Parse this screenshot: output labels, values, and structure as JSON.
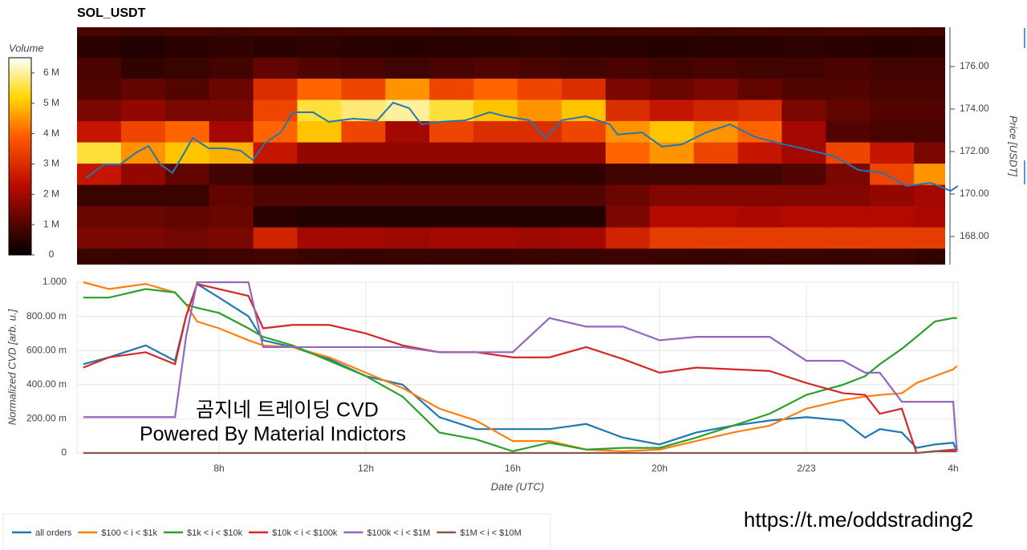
{
  "footer": "https://t.me/oddstrading2",
  "chart_data": [
    {
      "type": "heatmap",
      "title": "SOL_USDT",
      "colorbar_title": "Volume",
      "y_label": "Price [USDT]",
      "xlim": [
        4.13,
        28.13
      ],
      "ylim": [
        166.68,
        177.85
      ],
      "yticks": [
        {
          "value": 168,
          "label": "168.00"
        },
        {
          "value": 170,
          "label": "170.00"
        },
        {
          "value": 172,
          "label": "172.00"
        },
        {
          "value": 174,
          "label": "174.00"
        },
        {
          "value": 176,
          "label": "176.00"
        }
      ],
      "clim": [
        0,
        6500000
      ],
      "colorbar_ticks": [
        0,
        {
          "value": 1000000,
          "label": "1 M"
        },
        {
          "value": 2000000,
          "label": "2 M"
        },
        {
          "value": 3000000,
          "label": "3 M"
        },
        {
          "value": 4000000,
          "label": "4 M"
        },
        {
          "value": 5000000,
          "label": "5 M"
        },
        {
          "value": 6000000,
          "label": "6 M"
        }
      ],
      "heatmap": {
        "x_bins": [
          4.13,
          5.33,
          6.53,
          7.73,
          8.93,
          10.13,
          11.33,
          12.53,
          13.73,
          14.93,
          16.13,
          17.33,
          18.53,
          19.73,
          20.93,
          22.13,
          23.33,
          24.53,
          25.73,
          26.93,
          27.78
        ],
        "y_bins": [
          166.45,
          167.45,
          168.45,
          169.45,
          170.45,
          171.45,
          172.45,
          173.45,
          174.45,
          175.45,
          176.45,
          177.45,
          178.45
        ],
        "values": [
          [
            700000,
            650000,
            700000,
            750000,
            800000,
            700000,
            650000,
            700000,
            700000,
            650000,
            700000,
            700000,
            750000,
            700000,
            650000,
            700000,
            700000,
            650000,
            700000,
            600000
          ],
          [
            1500000,
            1500000,
            1400000,
            1500000,
            2800000,
            2000000,
            2000000,
            1900000,
            2000000,
            2000000,
            1900000,
            2000000,
            2800000,
            3300000,
            3300000,
            3300000,
            3300000,
            3300000,
            3300000,
            3300000
          ],
          [
            1300000,
            1300000,
            1200000,
            1300000,
            500000,
            400000,
            400000,
            400000,
            400000,
            400000,
            400000,
            400000,
            1500000,
            2200000,
            2200000,
            2100000,
            2200000,
            2200000,
            2200000,
            2100000
          ],
          [
            700000,
            700000,
            700000,
            1200000,
            1000000,
            1000000,
            1000000,
            1000000,
            1000000,
            1000000,
            1000000,
            1000000,
            1300000,
            1600000,
            1600000,
            1600000,
            1600000,
            1600000,
            1800000,
            2000000
          ],
          [
            2500000,
            1800000,
            1200000,
            800000,
            600000,
            600000,
            600000,
            600000,
            600000,
            600000,
            600000,
            600000,
            800000,
            800000,
            800000,
            800000,
            1000000,
            1500000,
            3500000,
            4500000
          ],
          [
            5500000,
            4500000,
            5000000,
            4800000,
            2500000,
            1800000,
            1800000,
            1800000,
            1800000,
            1800000,
            1800000,
            1800000,
            4000000,
            4500000,
            3500000,
            2500000,
            2000000,
            3500000,
            2500000,
            1500000
          ],
          [
            2500000,
            3500000,
            4000000,
            2000000,
            4000000,
            5000000,
            3500000,
            2000000,
            3500000,
            3000000,
            3000000,
            3500000,
            4500000,
            5000000,
            4500000,
            4000000,
            2000000,
            1000000,
            900000,
            900000
          ],
          [
            1500000,
            1800000,
            1500000,
            1500000,
            3500000,
            5500000,
            5800000,
            6000000,
            5500000,
            5000000,
            4500000,
            5000000,
            3000000,
            2500000,
            2800000,
            3000000,
            1500000,
            1200000,
            1000000,
            1000000
          ],
          [
            1000000,
            1200000,
            1000000,
            1300000,
            3000000,
            4000000,
            3500000,
            4500000,
            3500000,
            4000000,
            3500000,
            3000000,
            1500000,
            1300000,
            1500000,
            1200000,
            1000000,
            1000000,
            900000,
            900000
          ],
          [
            900000,
            600000,
            700000,
            800000,
            1200000,
            1000000,
            900000,
            800000,
            900000,
            1000000,
            900000,
            800000,
            900000,
            800000,
            900000,
            800000,
            800000,
            900000,
            800000,
            800000
          ],
          [
            500000,
            400000,
            500000,
            600000,
            500000,
            550000,
            500000,
            450000,
            500000,
            500000,
            550000,
            500000,
            500000,
            450000,
            500000,
            500000,
            550000,
            500000,
            450000,
            500000
          ],
          [
            900000,
            800000,
            900000,
            850000,
            900000,
            800000,
            850000,
            900000,
            800000,
            850000,
            900000,
            800000,
            850000,
            900000,
            800000,
            850000,
            800000,
            900000,
            850000,
            800000
          ]
        ]
      },
      "series": [
        {
          "color": "#1f77b4",
          "x": [
            4.37,
            4.87,
            5.31,
            5.75,
            6.08,
            6.4,
            6.73,
            7.06,
            7.28,
            7.72,
            8.15,
            8.59,
            8.92,
            9.25,
            9.68,
            10.01,
            10.56,
            10.99,
            11.65,
            12.31,
            12.74,
            13.18,
            13.51,
            14.05,
            14.71,
            15.37,
            15.8,
            16.46,
            16.9,
            17.33,
            17.99,
            18.64,
            18.86,
            19.52,
            20.07,
            20.61,
            21.27,
            21.92,
            22.58,
            23.23,
            23.89,
            24.77,
            25.42,
            26.08,
            26.73,
            27.39,
            27.93,
            28.13
          ],
          "values": [
            170.75,
            171.4,
            171.4,
            171.96,
            172.26,
            171.4,
            171.0,
            171.96,
            172.64,
            172.15,
            172.15,
            172.04,
            171.6,
            172.4,
            172.9,
            173.85,
            173.85,
            173.4,
            173.55,
            173.47,
            174.3,
            174.04,
            173.28,
            173.4,
            173.47,
            173.85,
            173.66,
            173.47,
            172.64,
            173.47,
            173.66,
            173.28,
            172.8,
            172.9,
            172.23,
            172.34,
            172.9,
            173.28,
            172.7,
            172.4,
            172.15,
            171.77,
            171.13,
            171.0,
            170.38,
            170.53,
            170.15,
            170.38
          ]
        }
      ]
    },
    {
      "type": "line",
      "x_label": "Date (UTC)",
      "y_label": "Normalized CVD [arb. u.]",
      "xlim": [
        4.13,
        28.13
      ],
      "ylim": [
        0,
        1
      ],
      "xticks": [
        {
          "value": 8,
          "label": "8h"
        },
        {
          "value": 12,
          "label": "12h"
        },
        {
          "value": 16,
          "label": "16h"
        },
        {
          "value": 20,
          "label": "20h"
        },
        {
          "value": 24,
          "label": "2/23"
        },
        {
          "value": 28,
          "label": "4h"
        }
      ],
      "yticks": [
        0,
        {
          "value": 0.2,
          "label": "200.00 m"
        },
        {
          "value": 0.4,
          "label": "400.00 m"
        },
        {
          "value": 0.6,
          "label": "600.00 m"
        },
        {
          "value": 0.8,
          "label": "800.00 m"
        },
        {
          "value": 1,
          "label": "1.000"
        }
      ],
      "grid": true,
      "annotations": [
        "곰지네 트레이딩 CVD",
        "Powered By Material Indictors"
      ],
      "x": [
        4.3,
        5,
        6,
        6.8,
        7.1,
        7.4,
        8,
        8.8,
        9.2,
        10,
        11,
        12,
        13,
        14,
        15,
        16,
        17,
        18,
        19,
        20,
        21,
        22,
        23,
        24,
        25,
        25.6,
        26,
        26.6,
        27,
        27.5,
        28,
        28.1
      ],
      "series": [
        {
          "name": "all orders",
          "color": "#1f77b4",
          "values": [
            0.52,
            0.56,
            0.63,
            0.54,
            0.8,
            0.99,
            0.91,
            0.8,
            0.66,
            0.62,
            0.55,
            0.45,
            0.4,
            0.21,
            0.14,
            0.14,
            0.14,
            0.17,
            0.09,
            0.05,
            0.12,
            0.16,
            0.19,
            0.21,
            0.19,
            0.09,
            0.14,
            0.12,
            0.03,
            0.05,
            0.06,
            0.01
          ]
        },
        {
          "name": "$100 < i < $1k",
          "color": "#ff7f0e",
          "values": [
            1.0,
            0.96,
            0.99,
            0.94,
            0.87,
            0.77,
            0.73,
            0.66,
            0.63,
            0.62,
            0.56,
            0.47,
            0.38,
            0.26,
            0.19,
            0.07,
            0.07,
            0.02,
            0.01,
            0.02,
            0.07,
            0.12,
            0.16,
            0.26,
            0.31,
            0.33,
            0.34,
            0.35,
            0.41,
            0.45,
            0.49,
            0.51
          ]
        },
        {
          "name": "$1k < i < $10k",
          "color": "#2ca02c",
          "values": [
            0.91,
            0.91,
            0.96,
            0.94,
            0.87,
            0.85,
            0.82,
            0.73,
            0.68,
            0.63,
            0.54,
            0.45,
            0.33,
            0.12,
            0.08,
            0.01,
            0.06,
            0.02,
            0.03,
            0.03,
            0.09,
            0.16,
            0.23,
            0.34,
            0.4,
            0.45,
            0.52,
            0.61,
            0.68,
            0.77,
            0.79,
            0.79
          ]
        },
        {
          "name": "$10k < i < $100k",
          "color": "#d62728",
          "values": [
            0.5,
            0.56,
            0.59,
            0.52,
            0.8,
            0.99,
            0.96,
            0.92,
            0.73,
            0.75,
            0.75,
            0.7,
            0.63,
            0.59,
            0.59,
            0.56,
            0.56,
            0.62,
            0.55,
            0.47,
            0.5,
            0.49,
            0.48,
            0.41,
            0.35,
            0.34,
            0.23,
            0.26,
            0,
            0.01,
            0.01,
            0.01
          ]
        },
        {
          "name": "$100k < i < $1M",
          "color": "#9467bd",
          "values": [
            0.21,
            0.21,
            0.21,
            0.21,
            0.68,
            1.0,
            1.0,
            1.0,
            0.62,
            0.62,
            0.62,
            0.62,
            0.62,
            0.59,
            0.59,
            0.59,
            0.79,
            0.74,
            0.74,
            0.66,
            0.68,
            0.68,
            0.68,
            0.54,
            0.54,
            0.47,
            0.47,
            0.3,
            0.3,
            0.3,
            0.3,
            0.01
          ]
        },
        {
          "name": "$1M < i < $10M",
          "color": "#8c564b",
          "values": [
            0,
            0,
            0,
            0,
            0,
            0,
            0,
            0,
            0,
            0,
            0,
            0,
            0,
            0,
            0,
            0,
            0,
            0,
            0,
            0,
            0,
            0,
            0,
            0,
            0,
            0,
            0,
            0,
            0,
            0.01,
            0.02,
            0.02
          ]
        }
      ]
    }
  ]
}
